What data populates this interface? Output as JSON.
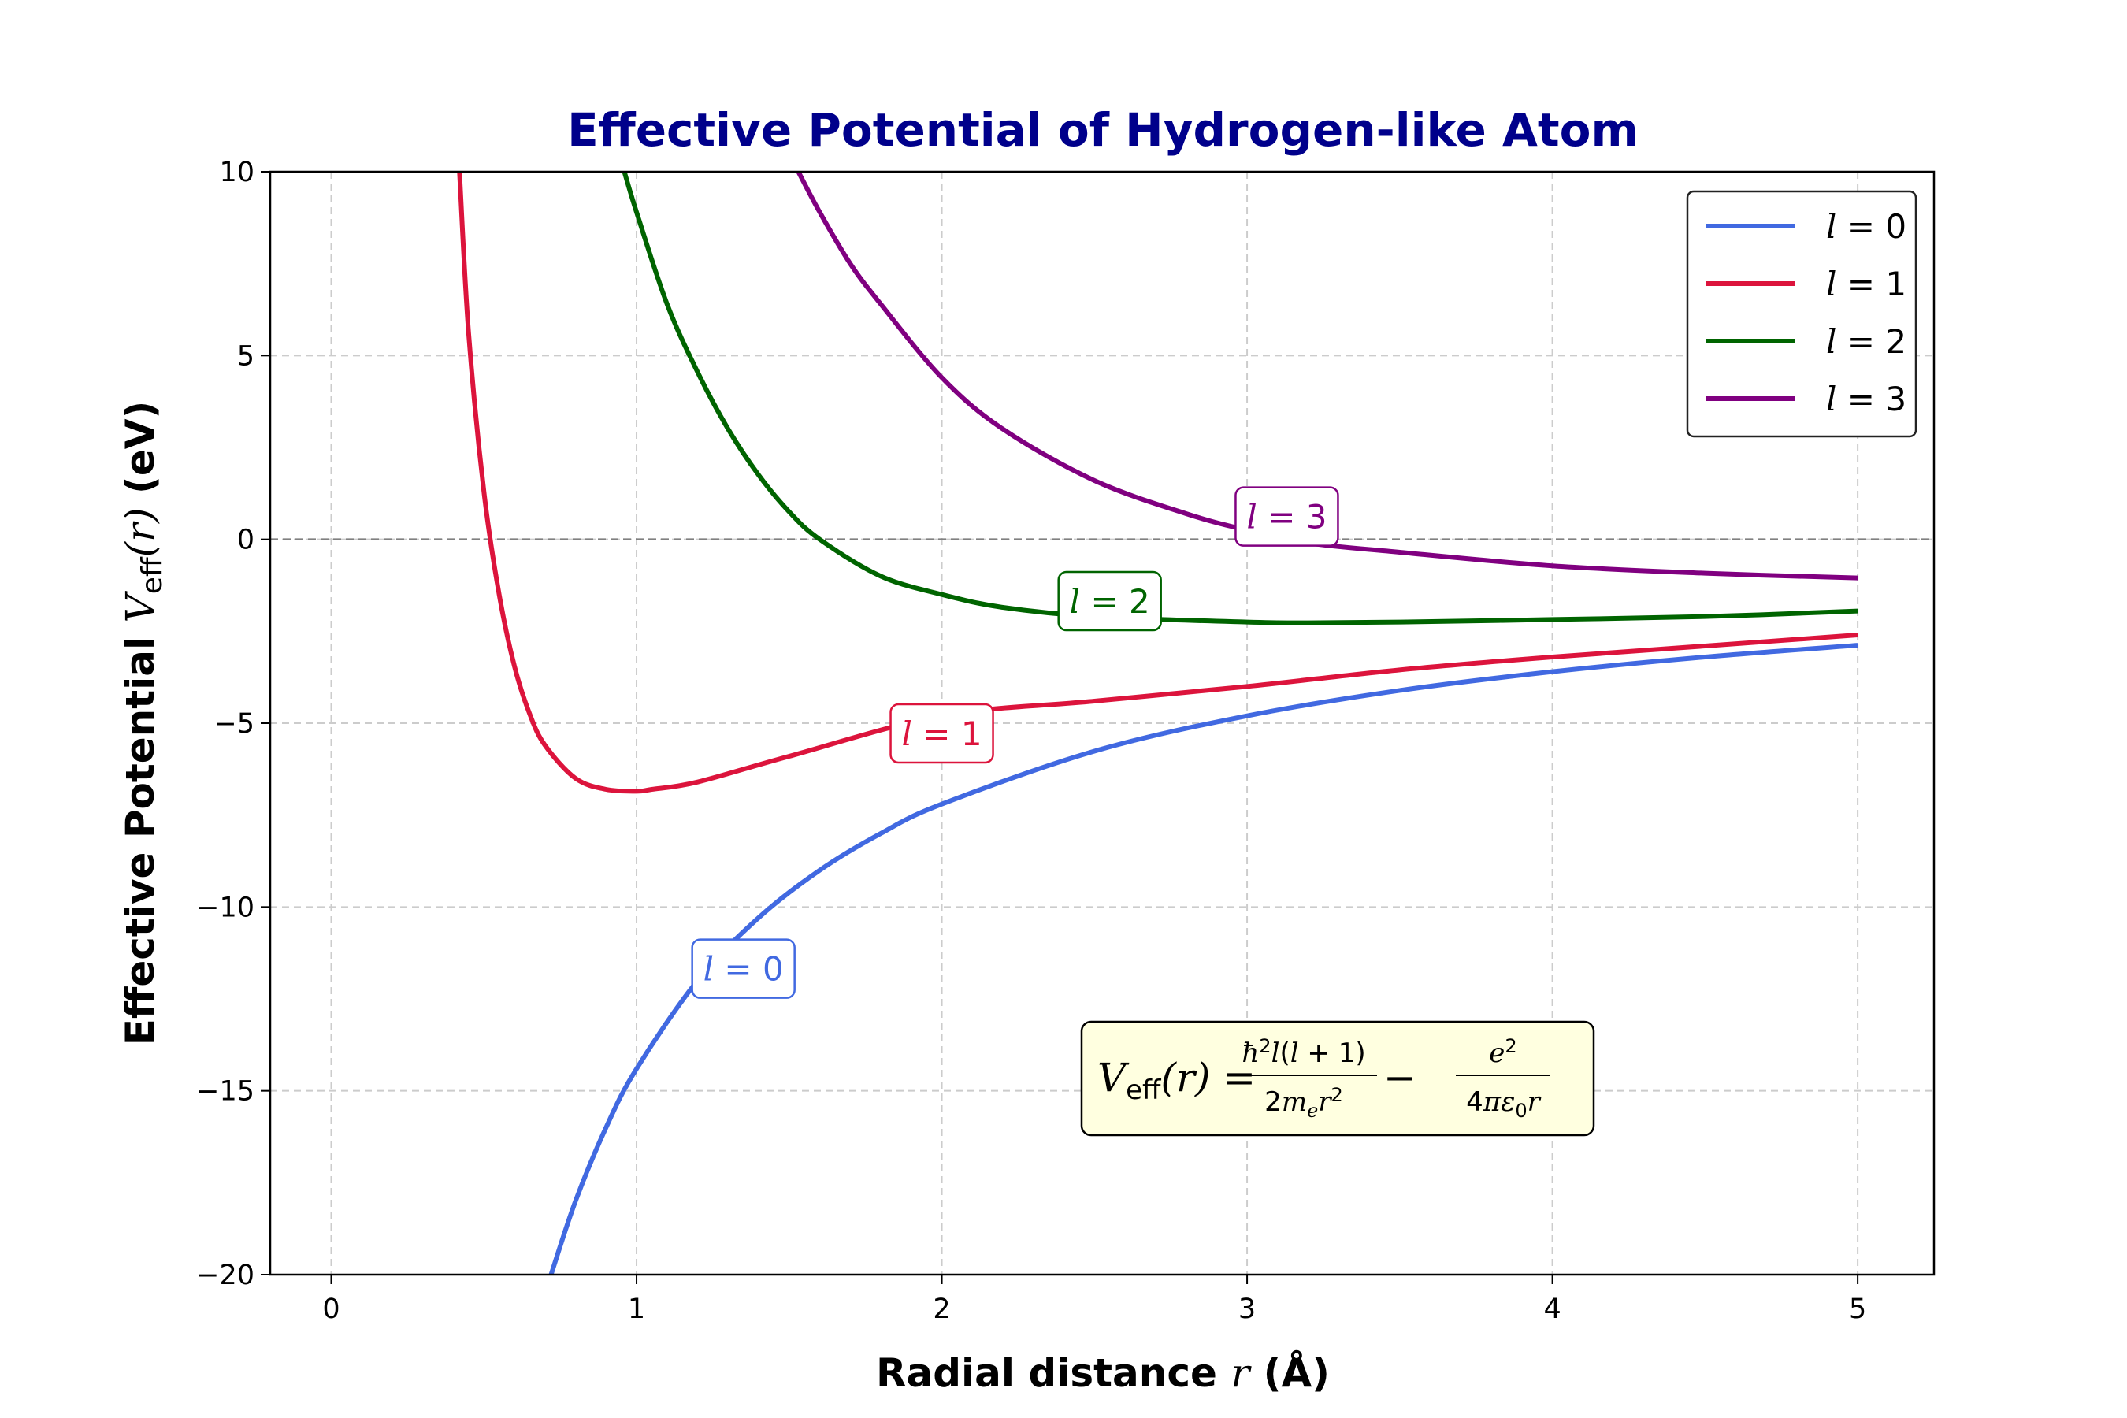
{
  "chart_data": {
    "type": "line",
    "title": "Effective Potential of Hydrogen-like Atom",
    "xlabel": "Radial distance r (Å)",
    "ylabel": "Effective Potential V_eff(r) (eV)",
    "xlim": [
      -0.2,
      5.25
    ],
    "ylim": [
      -20,
      10
    ],
    "xticks": [
      0,
      1,
      2,
      3,
      4,
      5
    ],
    "yticks": [
      10,
      5,
      0,
      -5,
      -10,
      -15,
      -20
    ],
    "ytick_labels": [
      "10",
      "5",
      "0",
      "−5",
      "−10",
      "−15",
      "−20"
    ],
    "grid": true,
    "legend": "top-right",
    "reference_line": {
      "y": 0,
      "style": "dashed",
      "color": "#808080"
    },
    "series": [
      {
        "name": "l = 0",
        "color": "#4169e1",
        "x": [
          0.72,
          0.8,
          0.9,
          1.0,
          1.2,
          1.4,
          1.6,
          1.8,
          2.0,
          2.5,
          3.0,
          3.5,
          4.0,
          4.5,
          5.0
        ],
        "y": [
          -20.0,
          -18.0,
          -16.0,
          -14.4,
          -12.0,
          -10.29,
          -9.0,
          -8.0,
          -7.2,
          -5.76,
          -4.8,
          -4.11,
          -3.6,
          -3.2,
          -2.88
        ]
      },
      {
        "name": "l = 1",
        "color": "#dc143c",
        "x": [
          0.42,
          0.45,
          0.5,
          0.55,
          0.6,
          0.65,
          0.7,
          0.8,
          0.9,
          1.0,
          1.05,
          1.2,
          1.5,
          2.0,
          2.5,
          3.0,
          3.5,
          4.0,
          4.5,
          5.0
        ],
        "y": [
          10.0,
          5.6,
          1.3,
          -1.5,
          -3.45,
          -4.75,
          -5.6,
          -6.5,
          -6.8,
          -6.85,
          -6.8,
          -6.6,
          -5.9,
          -4.8,
          -4.4,
          -4.0,
          -3.55,
          -3.2,
          -2.9,
          -2.6
        ],
        "label_text": "l = 1",
        "label_at": [
          2.0,
          -5.3
        ]
      },
      {
        "name": "l = 2",
        "color": "#006400",
        "x": [
          0.96,
          1.0,
          1.1,
          1.2,
          1.3,
          1.4,
          1.5,
          1.6,
          1.8,
          2.0,
          2.2,
          2.5,
          3.0,
          3.2,
          3.5,
          4.0,
          4.5,
          5.0
        ],
        "y": [
          10.0,
          8.9,
          6.4,
          4.55,
          3.0,
          1.75,
          0.75,
          0.0,
          -1.0,
          -1.5,
          -1.85,
          -2.1,
          -2.25,
          -2.27,
          -2.25,
          -2.18,
          -2.1,
          -1.95
        ],
        "label_text": "l = 2",
        "label_at": [
          2.55,
          -1.7
        ]
      },
      {
        "name": "l = 3",
        "color": "#800080",
        "x": [
          1.53,
          1.6,
          1.7,
          1.8,
          2.0,
          2.2,
          2.5,
          2.8,
          3.0,
          3.2,
          3.5,
          4.0,
          4.5,
          5.0
        ],
        "y": [
          10.0,
          8.9,
          7.5,
          6.4,
          4.4,
          3.0,
          1.6,
          0.7,
          0.25,
          -0.1,
          -0.35,
          -0.72,
          -0.92,
          -1.05
        ],
        "label_text": "l = 3",
        "label_at": [
          3.13,
          0.6
        ]
      }
    ],
    "annotation_l0": {
      "text": "l = 0",
      "at": [
        1.35,
        -11.7
      ]
    },
    "formula": {
      "lhs": "V_eff(r) =",
      "num1": "ħ²l(l + 1)",
      "den1": "2m_e r²",
      "minus": "−",
      "num2": "e²",
      "den2": "4πε₀r"
    }
  },
  "colors": {
    "title": "#00008b",
    "formula_box_fill": "#ffffe0",
    "grid": "#cccccc"
  }
}
